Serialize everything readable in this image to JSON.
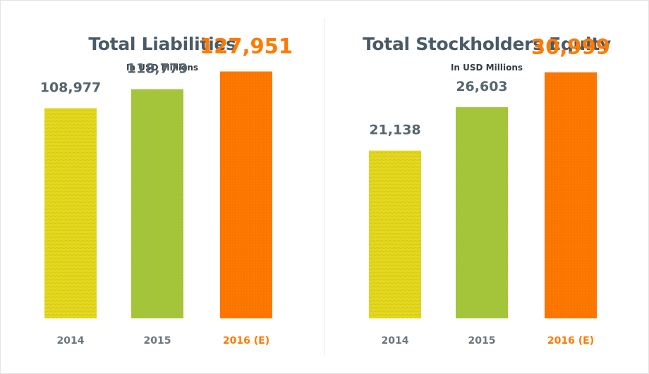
{
  "colors": {
    "bar_2014": "#e4d820",
    "bar_2015": "#a8c83c",
    "bar_2016": "#ff7a00",
    "text_normal": "#56656f",
    "label_highlight": "#ff7a00",
    "title": "#4a5a68"
  },
  "chart_data": [
    {
      "type": "bar",
      "title": "Total Liabilities",
      "subtitle": "In USD Millions",
      "categories": [
        "2014",
        "2015",
        "2016 (E)"
      ],
      "values": [
        108977,
        118779,
        127951
      ],
      "value_labels": [
        "108,977",
        "118,779",
        "127,951"
      ],
      "highlight_index": 2,
      "ylim": [
        0,
        165000
      ],
      "grid": false,
      "legend": "none"
    },
    {
      "type": "bar",
      "title": "Total Stockholders Equity",
      "subtitle": "In USD Millions",
      "categories": [
        "2014",
        "2015",
        "2016 (E)"
      ],
      "values": [
        21138,
        26603,
        30999
      ],
      "value_labels": [
        "21,138",
        "26,603",
        "30,999"
      ],
      "highlight_index": 2,
      "ylim": [
        0,
        40100
      ],
      "grid": false,
      "legend": "none"
    }
  ]
}
